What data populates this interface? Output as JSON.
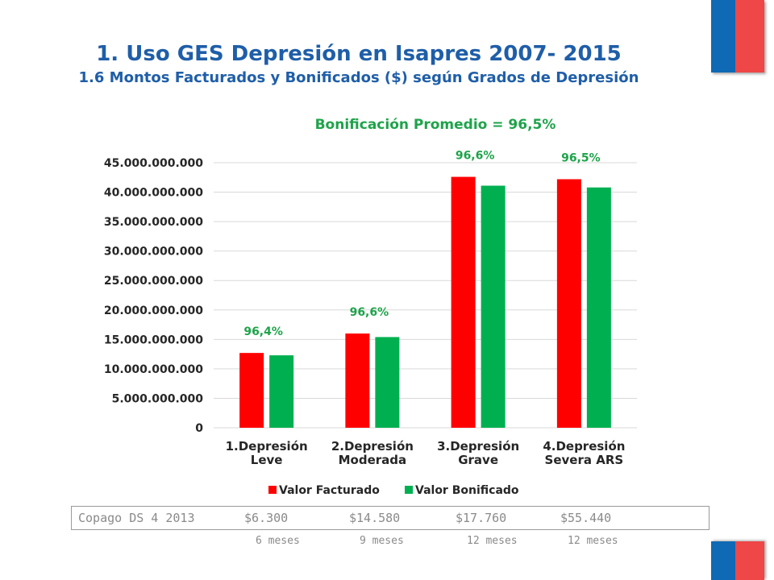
{
  "header": {
    "title": "1.  Uso GES Depresión en Isapres 2007- 2015",
    "subtitle": "1.6 Montos Facturados y Bonificados ($) según Grados de Depresión",
    "chart_heading": "Bonificación Promedio = 96,5%"
  },
  "colors": {
    "flag_blue": "#0f69b4",
    "flag_red": "#ef4647",
    "title": "#1f5ea8",
    "facturado": "#ff0000",
    "bonificado": "#00b050"
  },
  "chart_data": {
    "type": "bar",
    "title": "Bonificación Promedio = 96,5%",
    "categories": [
      [
        "1.Depresión",
        "Leve"
      ],
      [
        "2.Depresión",
        "Moderada"
      ],
      [
        "3.Depresión",
        "Grave"
      ],
      [
        "4.Depresión",
        "Severa ARS"
      ]
    ],
    "series": [
      {
        "name": "Valor Facturado",
        "color": "#ff0000",
        "values": [
          12700000000,
          16000000000,
          42600000000,
          42200000000
        ]
      },
      {
        "name": "Valor Bonificado",
        "color": "#00b050",
        "values": [
          12300000000,
          15400000000,
          41100000000,
          40800000000
        ]
      }
    ],
    "annotations": [
      "96,4%",
      "96,6%",
      "96,6%",
      "96,5%"
    ],
    "ylim": [
      0,
      45000000000
    ],
    "yticks": [
      "0",
      "5.000.000.000",
      "10.000.000.000",
      "15.000.000.000",
      "20.000.000.000",
      "25.000.000.000",
      "30.000.000.000",
      "35.000.000.000",
      "40.000.000.000",
      "45.000.000.000"
    ],
    "grid": true,
    "legend": "bottom"
  },
  "copago": {
    "label": "Copago DS 4 2013",
    "values": [
      "$6.300",
      "$14.580",
      "$17.760",
      "$55.440"
    ],
    "periods": [
      "6 meses",
      "9 meses",
      "12 meses",
      "12 meses"
    ]
  }
}
